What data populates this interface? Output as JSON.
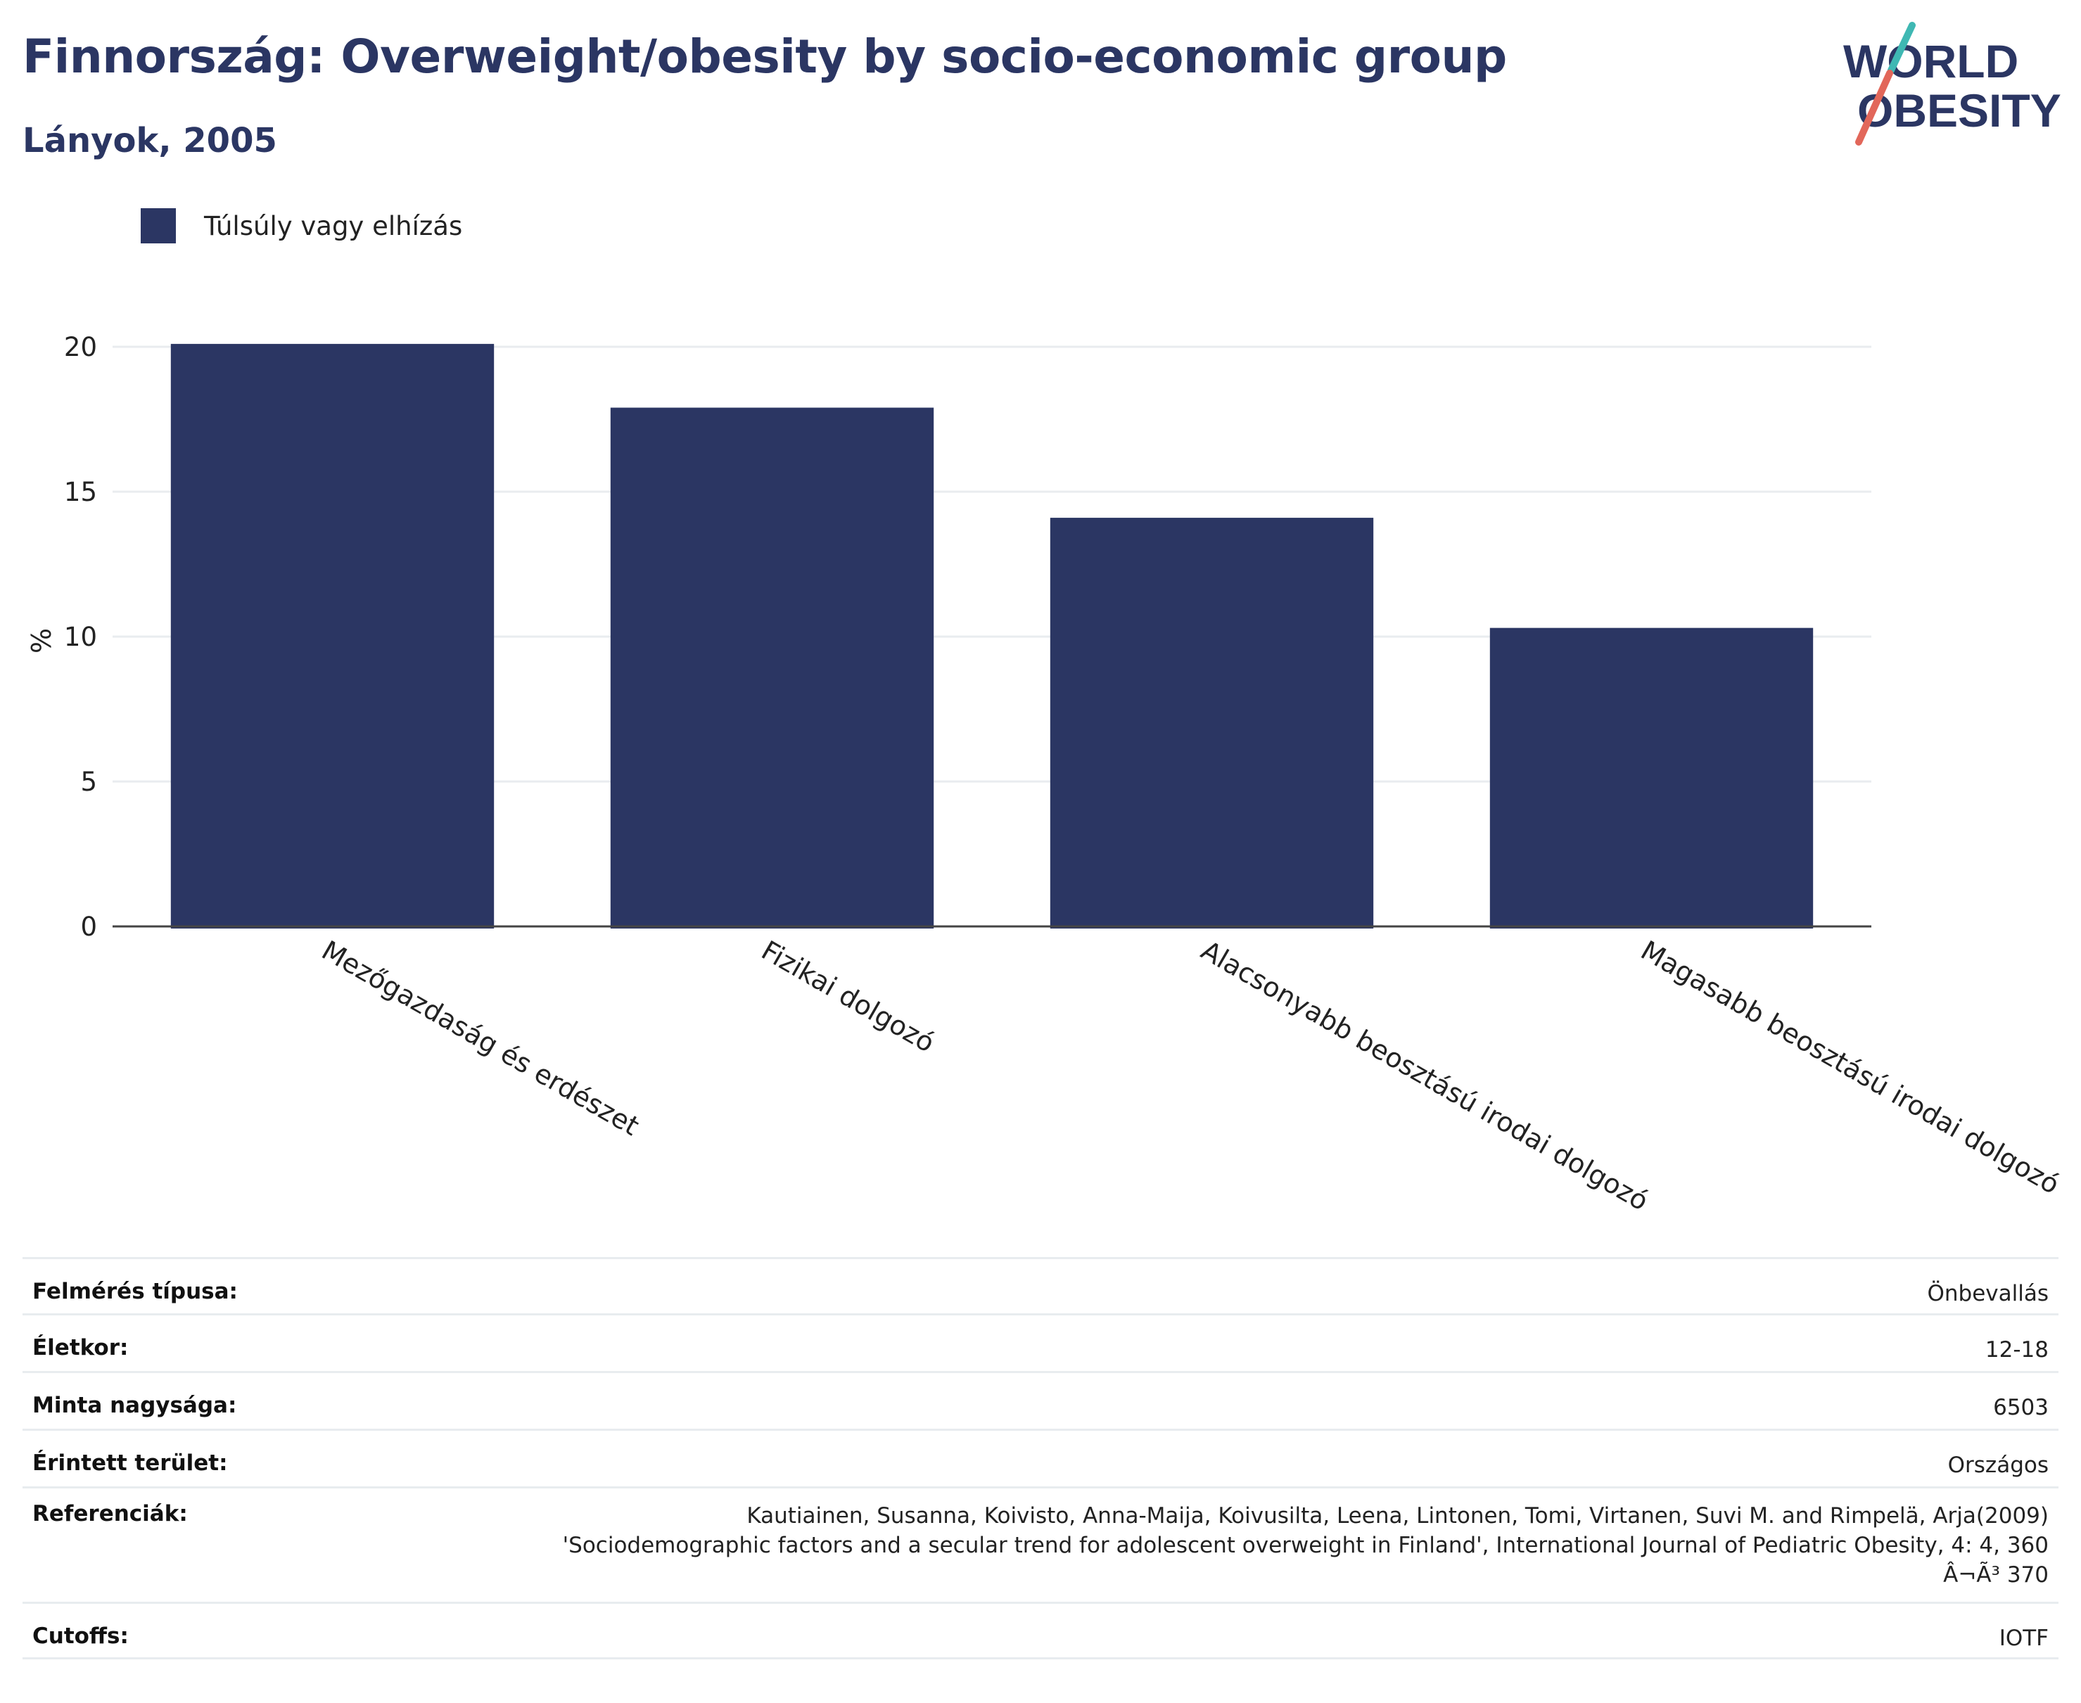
{
  "header": {
    "title": "Finnország: Overweight/obesity by socio-economic group",
    "subtitle": "Lányok, 2005"
  },
  "logo": {
    "line1": "WORLD",
    "line2": "OBESITY",
    "colors": {
      "text": "#2b3663",
      "teal": "#3fb8b3",
      "coral": "#e2675a"
    }
  },
  "chart_data": {
    "type": "bar",
    "categories": [
      "Mezőgazdaság és erdészet",
      "Fizikai dolgozó",
      "Alacsonyabb beosztású irodai dolgozó",
      "Magasabb beosztású irodai dolgozó"
    ],
    "series": [
      {
        "name": "Túlsúly vagy elhízás",
        "values": [
          20.1,
          17.9,
          14.1,
          10.3
        ],
        "color": "#2b3663"
      }
    ],
    "title": "Finnország: Overweight/obesity by socio-economic group",
    "subtitle": "Lányok, 2005",
    "xlabel": "",
    "ylabel": "%",
    "ylim": [
      0,
      20
    ],
    "yticks": [
      0,
      5,
      10,
      15,
      20
    ],
    "grid": true,
    "legend": "top-left"
  },
  "info": {
    "rows": [
      {
        "key": "Felmérés típusa:",
        "value": "Önbevallás"
      },
      {
        "key": "Életkor:",
        "value": "12-18"
      },
      {
        "key": "Minta nagysága:",
        "value": "6503"
      },
      {
        "key": "Érintett terület:",
        "value": "Országos"
      },
      {
        "key": "Referenciák:",
        "value": "Kautiainen, Susanna, Koivisto, Anna-Maija, Koivusilta, Leena, Lintonen, Tomi, Virtanen, Suvi M. and Rimpelä, Arja(2009)\n'Sociodemographic factors and a secular trend for adolescent overweight in Finland', International Journal of Pediatric Obesity, 4: 4, 360\nÂ¬Ã³ 370"
      },
      {
        "key": "Cutoffs:",
        "value": "IOTF"
      }
    ]
  }
}
